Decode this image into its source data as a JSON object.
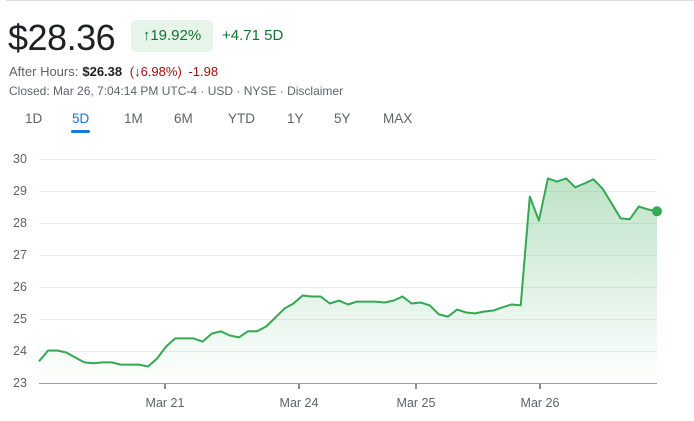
{
  "header": {
    "price": "$28.36",
    "change_percent": "19.92%",
    "change_arrow": "↑",
    "change_abs": "+4.71",
    "change_period": "5D",
    "after_hours_label": "After Hours:",
    "after_hours_price": "$26.38",
    "after_hours_percent": "6.98%",
    "after_hours_arrow": "↓",
    "after_hours_change": "-1.98",
    "closed_text": "Closed: Mar 26, 7:04:14 PM UTC-4 · USD · NYSE · Disclaimer"
  },
  "tabs": [
    {
      "label": "1D",
      "active": false
    },
    {
      "label": "5D",
      "active": true
    },
    {
      "label": "1M",
      "active": false
    },
    {
      "label": "6M",
      "active": false
    },
    {
      "label": "YTD",
      "active": false
    },
    {
      "label": "1Y",
      "active": false
    },
    {
      "label": "5Y",
      "active": false
    },
    {
      "label": "MAX",
      "active": false
    }
  ],
  "colors": {
    "positive": "#137333",
    "positive_bg": "#e6f4ea",
    "negative": "#a50e0e",
    "line": "#34a853",
    "accent": "#1a73e8"
  },
  "chart_data": {
    "type": "area",
    "title": "",
    "xlabel": "",
    "ylabel": "",
    "ylim": [
      23,
      30
    ],
    "yticks": [
      "30",
      "29",
      "28",
      "27",
      "26",
      "25",
      "24",
      "23"
    ],
    "xticks": [
      "Mar 21",
      "Mar 24",
      "Mar 25",
      "Mar 26"
    ],
    "grid": true,
    "series": [
      {
        "name": "Price",
        "values": [
          23.69,
          24.03,
          24.03,
          23.97,
          23.81,
          23.66,
          23.63,
          23.66,
          23.66,
          23.59,
          23.59,
          23.59,
          23.53,
          23.78,
          24.16,
          24.41,
          24.41,
          24.41,
          24.31,
          24.56,
          24.63,
          24.5,
          24.44,
          24.63,
          24.63,
          24.78,
          25.06,
          25.34,
          25.5,
          25.75,
          25.72,
          25.72,
          25.5,
          25.59,
          25.47,
          25.56,
          25.56,
          25.56,
          25.53,
          25.59,
          25.72,
          25.5,
          25.53,
          25.44,
          25.16,
          25.09,
          25.31,
          25.22,
          25.19,
          25.25,
          25.28,
          25.38,
          25.47,
          25.44,
          28.84,
          28.09,
          29.41,
          29.31,
          29.41,
          29.13,
          29.25,
          29.38,
          29.09,
          28.63,
          28.16,
          28.13,
          28.53,
          28.44,
          28.38
        ]
      }
    ],
    "last_value": 28.36
  }
}
